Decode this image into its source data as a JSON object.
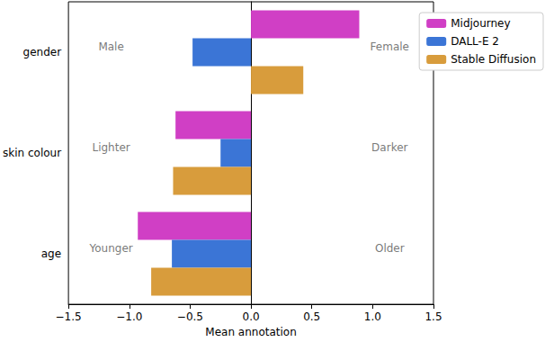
{
  "chart_data": {
    "type": "bar",
    "orientation": "horizontal",
    "x_label": "Mean annotation",
    "categories": [
      "gender",
      "skin colour",
      "age"
    ],
    "series": [
      {
        "name": "Midjourney",
        "color": "#d03fc5",
        "values": [
          0.89,
          -0.62,
          -0.93
        ]
      },
      {
        "name": "DALL-E 2",
        "color": "#3b75d6",
        "values": [
          -0.48,
          -0.25,
          -0.65
        ]
      },
      {
        "name": "Stable Diffusion",
        "color": "#d89c3c",
        "values": [
          0.43,
          -0.64,
          -0.82
        ]
      }
    ],
    "annotations": [
      {
        "category": "gender",
        "left": "Male",
        "right": "Female"
      },
      {
        "category": "skin colour",
        "left": "Lighter",
        "right": "Darker"
      },
      {
        "category": "age",
        "left": "Younger",
        "right": "Older"
      }
    ],
    "xlim": [
      -1.5,
      1.5
    ],
    "xticks": [
      {
        "value": -1.5,
        "label": "−1.5"
      },
      {
        "value": -1.0,
        "label": "−1.0"
      },
      {
        "value": -0.5,
        "label": "−0.5"
      },
      {
        "value": 0,
        "label": "0.0"
      },
      0.5,
      {
        "value": 1,
        "label": "1.0"
      },
      1.5
    ],
    "grid": false,
    "legend": "upper right"
  }
}
